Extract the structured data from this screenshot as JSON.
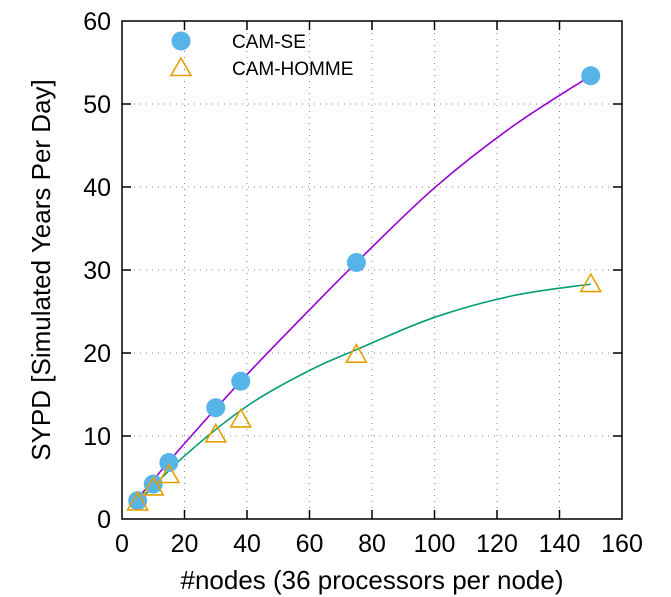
{
  "chart_data": {
    "type": "scatter",
    "xlabel": "#nodes (36 processors per node)",
    "ylabel": "SYPD [Simulated Years Per Day]",
    "xlim": [
      0,
      160
    ],
    "ylim": [
      0,
      60
    ],
    "x_ticks": [
      0,
      20,
      40,
      60,
      80,
      100,
      120,
      140,
      160
    ],
    "y_ticks": [
      0,
      10,
      20,
      30,
      40,
      50,
      60
    ],
    "grid": true,
    "legend_position": "top-left",
    "series": [
      {
        "name": "CAM-SE",
        "marker": "filled-circle",
        "color": "#56b4e9",
        "fit_color": "#9400d3",
        "x": [
          5,
          10,
          15,
          30,
          38,
          75,
          150
        ],
        "y": [
          2.2,
          4.2,
          6.8,
          13.4,
          16.6,
          30.9,
          53.4
        ],
        "fit_curve": [
          [
            4,
            2.0
          ],
          [
            20,
            9.1
          ],
          [
            40,
            17.4
          ],
          [
            60,
            25.2
          ],
          [
            75,
            30.9
          ],
          [
            100,
            39.9
          ],
          [
            125,
            47.3
          ],
          [
            150,
            53.4
          ]
        ]
      },
      {
        "name": "CAM-HOMME",
        "marker": "open-triangle",
        "color": "#e69f00",
        "fit_color": "#009e73",
        "x": [
          5,
          10,
          15,
          30,
          38,
          75,
          150
        ],
        "y": [
          2.0,
          3.8,
          5.3,
          10.2,
          12.0,
          19.8,
          28.3
        ],
        "fit_curve": [
          [
            4,
            1.6
          ],
          [
            20,
            7.6
          ],
          [
            40,
            13.6
          ],
          [
            60,
            17.9
          ],
          [
            75,
            20.4
          ],
          [
            100,
            24.3
          ],
          [
            125,
            26.9
          ],
          [
            150,
            28.3
          ]
        ]
      }
    ]
  }
}
